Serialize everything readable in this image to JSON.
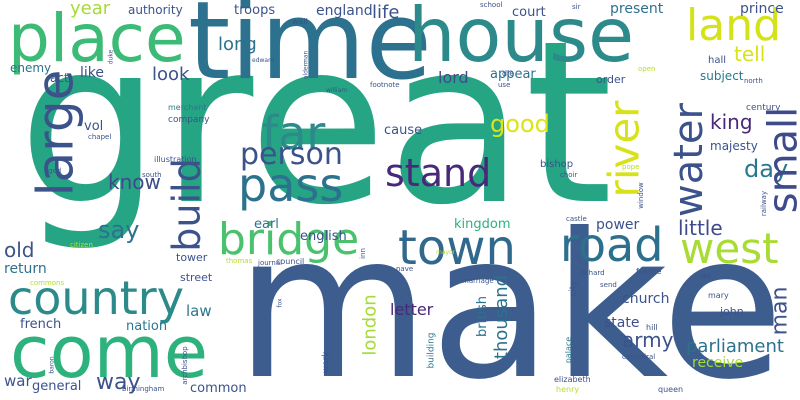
{
  "words": [
    {
      "text": "great",
      "color": "#26a584"
    },
    {
      "text": "make",
      "color": "#3c5d8e"
    },
    {
      "text": "time",
      "color": "#2c728e"
    },
    {
      "text": "house",
      "color": "#2c8a8a"
    },
    {
      "text": "place",
      "color": "#3bbb75"
    },
    {
      "text": "come",
      "color": "#2db27d"
    },
    {
      "text": "country",
      "color": "#2c8a8a"
    },
    {
      "text": "bridge",
      "color": "#4ac16d"
    },
    {
      "text": "town",
      "color": "#31688e"
    },
    {
      "text": "road",
      "color": "#2d708e"
    },
    {
      "text": "west",
      "color": "#a8db34"
    },
    {
      "text": "land",
      "color": "#d4e21a"
    },
    {
      "text": "pass",
      "color": "#2c728e"
    },
    {
      "text": "stand",
      "color": "#482878"
    },
    {
      "text": "far",
      "color": "#2c8a8a"
    },
    {
      "text": "large",
      "color": "#3b528b"
    },
    {
      "text": "build",
      "color": "#3b528b"
    },
    {
      "text": "river",
      "color": "#d8e219"
    },
    {
      "text": "water",
      "color": "#3b528b"
    },
    {
      "text": "small",
      "color": "#3e4a89"
    },
    {
      "text": "person",
      "color": "#3b528b"
    },
    {
      "text": "day",
      "color": "#2a788e"
    },
    {
      "text": "good",
      "color": "#dde318"
    },
    {
      "text": "king",
      "color": "#482878"
    },
    {
      "text": "know",
      "color": "#3e4a89"
    },
    {
      "text": "say",
      "color": "#2c728e"
    },
    {
      "text": "old",
      "color": "#3b528b"
    },
    {
      "text": "little",
      "color": "#3e4a89"
    },
    {
      "text": "man",
      "color": "#3b528b"
    },
    {
      "text": "army",
      "color": "#3b528b"
    },
    {
      "text": "thousand",
      "color": "#2c728e"
    },
    {
      "text": "london",
      "color": "#a5db36"
    },
    {
      "text": "british",
      "color": "#2c728e"
    },
    {
      "text": "letter",
      "color": "#482878"
    },
    {
      "text": "way",
      "color": "#3b528b"
    },
    {
      "text": "general",
      "color": "#3b528b"
    },
    {
      "text": "war",
      "color": "#3b528b"
    },
    {
      "text": "french",
      "color": "#3b528b"
    },
    {
      "text": "return",
      "color": "#2c728e"
    },
    {
      "text": "nation",
      "color": "#2a788e"
    },
    {
      "text": "law",
      "color": "#2a788e"
    },
    {
      "text": "common",
      "color": "#3b528b"
    },
    {
      "text": "parliament",
      "color": "#2c728e"
    },
    {
      "text": "receive",
      "color": "#a5db36"
    },
    {
      "text": "state",
      "color": "#3b528b"
    },
    {
      "text": "church",
      "color": "#3b528b"
    },
    {
      "text": "power",
      "color": "#3b528b"
    },
    {
      "text": "kingdom",
      "color": "#2db27d"
    },
    {
      "text": "english",
      "color": "#3b528b"
    },
    {
      "text": "earl",
      "color": "#2c728e"
    },
    {
      "text": "street",
      "color": "#3b528b"
    },
    {
      "text": "tower",
      "color": "#3b528b"
    },
    {
      "text": "vol",
      "color": "#3b528b"
    },
    {
      "text": "cause",
      "color": "#3b528b"
    },
    {
      "text": "year",
      "color": "#a5db36"
    },
    {
      "text": "authority",
      "color": "#3b528b"
    },
    {
      "text": "troops",
      "color": "#3b528b"
    },
    {
      "text": "england",
      "color": "#3b528b"
    },
    {
      "text": "life",
      "color": "#3b528b"
    },
    {
      "text": "court",
      "color": "#3b528b"
    },
    {
      "text": "present",
      "color": "#2c728e"
    },
    {
      "text": "prince",
      "color": "#3b528b"
    },
    {
      "text": "long",
      "color": "#2c728e"
    },
    {
      "text": "look",
      "color": "#3b528b"
    },
    {
      "text": "like",
      "color": "#3b528b"
    },
    {
      "text": "lord",
      "color": "#3e4a89"
    },
    {
      "text": "appear",
      "color": "#2c728e"
    },
    {
      "text": "tell",
      "color": "#d8e219"
    },
    {
      "text": "subject",
      "color": "#2a788e"
    },
    {
      "text": "order",
      "color": "#3b528b"
    },
    {
      "text": "act",
      "color": "#3b528b"
    },
    {
      "text": "enemy",
      "color": "#2c728e"
    },
    {
      "text": "hall",
      "color": "#3b528b"
    },
    {
      "text": "majesty",
      "color": "#3b528b"
    },
    {
      "text": "century",
      "color": "#3b528b"
    },
    {
      "text": "bishop",
      "color": "#3b528b"
    },
    {
      "text": "john",
      "color": "#3b528b"
    },
    {
      "text": "mary",
      "color": "#3b528b"
    },
    {
      "text": "company",
      "color": "#3b528b"
    },
    {
      "text": "merchant",
      "color": "#2a788e"
    },
    {
      "text": "illustration",
      "color": "#3b528b"
    },
    {
      "text": "god",
      "color": "#3b528b"
    },
    {
      "text": "chapel",
      "color": "#3b528b"
    },
    {
      "text": "south",
      "color": "#3b528b"
    },
    {
      "text": "journal",
      "color": "#3b528b"
    },
    {
      "text": "council",
      "color": "#3b528b"
    },
    {
      "text": "thomas",
      "color": "#b5de2b"
    },
    {
      "text": "citizen",
      "color": "#b5de2b"
    },
    {
      "text": "commons",
      "color": "#b5de2b"
    },
    {
      "text": "work",
      "color": "#3b528b"
    },
    {
      "text": "building",
      "color": "#2a788e"
    },
    {
      "text": "archbishop",
      "color": "#3b528b"
    },
    {
      "text": "birmingham",
      "color": "#3b528b"
    },
    {
      "text": "elizabeth",
      "color": "#3b528b"
    },
    {
      "text": "henry",
      "color": "#b5de2b"
    },
    {
      "text": "palace",
      "color": "#2a788e"
    },
    {
      "text": "city",
      "color": "#3b528b"
    },
    {
      "text": "cathedral",
      "color": "#3b528b"
    },
    {
      "text": "queen",
      "color": "#3b528b"
    },
    {
      "text": "hill",
      "color": "#3b528b"
    },
    {
      "text": "france",
      "color": "#3b528b"
    },
    {
      "text": "send",
      "color": "#3b528b"
    },
    {
      "text": "richard",
      "color": "#3b528b"
    },
    {
      "text": "marriage",
      "color": "#3b528b"
    },
    {
      "text": "nave",
      "color": "#3b528b"
    },
    {
      "text": "inn",
      "color": "#3b528b"
    },
    {
      "text": "choir",
      "color": "#3b528b"
    },
    {
      "text": "pope",
      "color": "#b5de2b"
    },
    {
      "text": "window",
      "color": "#3b528b"
    },
    {
      "text": "castle",
      "color": "#3b528b"
    },
    {
      "text": "railway",
      "color": "#3b528b"
    },
    {
      "text": "north",
      "color": "#3b528b"
    },
    {
      "text": "open",
      "color": "#b5de2b"
    },
    {
      "text": "wall",
      "color": "#3b528b"
    },
    {
      "text": "school",
      "color": "#3b528b"
    },
    {
      "text": "sir",
      "color": "#3b528b"
    },
    {
      "text": "die",
      "color": "#3b528b"
    },
    {
      "text": "use",
      "color": "#3b528b"
    },
    {
      "text": "footnote",
      "color": "#3b528b"
    },
    {
      "text": "william",
      "color": "#3b528b"
    },
    {
      "text": "edward",
      "color": "#3b528b"
    },
    {
      "text": "duke",
      "color": "#3b528b"
    },
    {
      "text": "alderman",
      "color": "#3b528b"
    },
    {
      "text": "fox",
      "color": "#b5de2b"
    },
    {
      "text": "mayor",
      "color": "#3b528b"
    },
    {
      "text": "baron",
      "color": "#3b528b"
    },
    {
      "text": "heir",
      "color": "#3b528b"
    }
  ]
}
